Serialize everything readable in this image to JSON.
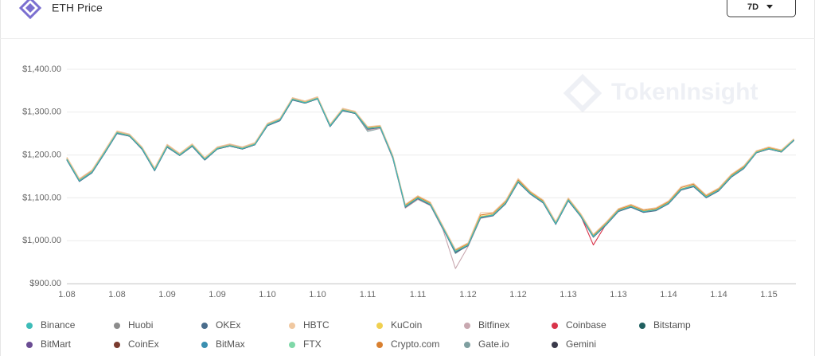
{
  "header": {
    "title": "ETH Price",
    "range_button": "7D",
    "watermark": "TokenInsight"
  },
  "chart_data": {
    "type": "line",
    "categories": [
      "1.08",
      null,
      null,
      null,
      "1.08",
      null,
      null,
      null,
      "1.09",
      null,
      null,
      null,
      "1.09",
      null,
      null,
      null,
      "1.10",
      null,
      null,
      null,
      "1.10",
      null,
      null,
      null,
      "1.11",
      null,
      null,
      null,
      "1.11",
      null,
      null,
      null,
      "1.12",
      null,
      null,
      null,
      "1.12",
      null,
      null,
      null,
      "1.13",
      null,
      null,
      null,
      "1.13",
      null,
      null,
      null,
      "1.14",
      null,
      null,
      null,
      "1.14",
      null,
      null,
      null,
      "1.15",
      null,
      null
    ],
    "ylim": [
      900,
      1400
    ],
    "yticks": [
      {
        "value": 900,
        "label": "$900.00"
      },
      {
        "value": 1000,
        "label": "$1,000.00"
      },
      {
        "value": 1100,
        "label": "$1,100.00"
      },
      {
        "value": 1200,
        "label": "$1,200.00"
      },
      {
        "value": 1300,
        "label": "$1,300.00"
      },
      {
        "value": 1400,
        "label": "$1,400.00"
      }
    ],
    "grid": true,
    "series": [
      {
        "name": "Binance",
        "color": "#3dbcb8",
        "values": [
          1190,
          1140,
          1160,
          1205,
          1252,
          1245,
          1215,
          1165,
          1220,
          1200,
          1222,
          1190,
          1215,
          1222,
          1215,
          1225,
          1270,
          1282,
          1330,
          1322,
          1332,
          1268,
          1305,
          1298,
          1262,
          1265,
          1195,
          1080,
          1100,
          1085,
          1030,
          975,
          990,
          1055,
          1060,
          1088,
          1138,
          1110,
          1090,
          1040,
          1095,
          1058,
          1010,
          1038,
          1070,
          1080,
          1068,
          1072,
          1088,
          1120,
          1128,
          1102,
          1118,
          1150,
          1170,
          1206,
          1215,
          1208,
          1235
        ]
      },
      {
        "name": "Huobi",
        "color": "#8c8c8c",
        "values": [
          1190,
          1140,
          1160,
          1205,
          1252,
          1245,
          1215,
          1165,
          1220,
          1200,
          1222,
          1190,
          1215,
          1222,
          1215,
          1225,
          1270,
          1282,
          1330,
          1322,
          1332,
          1268,
          1305,
          1298,
          1262,
          1265,
          1195,
          1080,
          1100,
          1085,
          1030,
          975,
          990,
          1055,
          1060,
          1088,
          1138,
          1110,
          1090,
          1040,
          1095,
          1058,
          1010,
          1038,
          1070,
          1080,
          1068,
          1072,
          1088,
          1120,
          1128,
          1102,
          1118,
          1150,
          1170,
          1206,
          1215,
          1208,
          1235
        ]
      },
      {
        "name": "OKEx",
        "color": "#4a6d8c",
        "values": [
          1188,
          1138,
          1158,
          1203,
          1250,
          1244,
          1213,
          1163,
          1218,
          1199,
          1220,
          1188,
          1214,
          1221,
          1214,
          1224,
          1268,
          1280,
          1328,
          1321,
          1331,
          1266,
          1303,
          1297,
          1260,
          1264,
          1193,
          1078,
          1098,
          1083,
          1028,
          972,
          988,
          1053,
          1058,
          1086,
          1136,
          1108,
          1088,
          1038,
          1093,
          1056,
          1008,
          1036,
          1068,
          1078,
          1066,
          1070,
          1086,
          1118,
          1126,
          1100,
          1116,
          1148,
          1168,
          1205,
          1214,
          1207,
          1234
        ]
      },
      {
        "name": "HBTC",
        "color": "#f0c8a0",
        "values": [
          1195,
          1145,
          1165,
          1210,
          1256,
          1249,
          1219,
          1170,
          1225,
          1204,
          1226,
          1194,
          1219,
          1226,
          1219,
          1229,
          1274,
          1286,
          1334,
          1326,
          1336,
          1272,
          1309,
          1302,
          1266,
          1269,
          1200,
          1085,
          1105,
          1090,
          1035,
          980,
          995,
          1065,
          1066,
          1094,
          1145,
          1115,
          1095,
          1045,
          1100,
          1063,
          1015,
          1043,
          1075,
          1085,
          1073,
          1077,
          1093,
          1126,
          1134,
          1107,
          1123,
          1155,
          1175,
          1210,
          1219,
          1212,
          1238
        ]
      },
      {
        "name": "KuCoin",
        "color": "#f0d050",
        "values": [
          1191,
          1141,
          1161,
          1206,
          1253,
          1246,
          1216,
          1166,
          1221,
          1201,
          1223,
          1191,
          1216,
          1223,
          1216,
          1226,
          1271,
          1283,
          1331,
          1323,
          1333,
          1269,
          1306,
          1299,
          1263,
          1266,
          1196,
          1081,
          1101,
          1086,
          1031,
          976,
          991,
          1057,
          1061,
          1089,
          1139,
          1111,
          1091,
          1041,
          1096,
          1059,
          1011,
          1039,
          1071,
          1081,
          1069,
          1073,
          1089,
          1121,
          1129,
          1103,
          1119,
          1151,
          1171,
          1207,
          1216,
          1209,
          1236
        ]
      },
      {
        "name": "Bitfinex",
        "color": "#c8a8b0",
        "values": [
          1192,
          1142,
          1162,
          1207,
          1254,
          1247,
          1217,
          1167,
          1222,
          1202,
          1224,
          1192,
          1217,
          1224,
          1217,
          1227,
          1272,
          1284,
          1332,
          1324,
          1334,
          1270,
          1307,
          1300,
          1258,
          1262,
          1192,
          1076,
          1096,
          1082,
          1026,
          935,
          986,
          1052,
          1058,
          1086,
          1137,
          1109,
          1089,
          1039,
          1094,
          1057,
          1009,
          1037,
          1069,
          1079,
          1067,
          1071,
          1087,
          1119,
          1127,
          1101,
          1117,
          1149,
          1169,
          1205,
          1214,
          1207,
          1234
        ]
      },
      {
        "name": "Coinbase",
        "color": "#d9344a",
        "values": [
          1190,
          1140,
          1160,
          1205,
          1252,
          1245,
          1215,
          1165,
          1220,
          1200,
          1222,
          1190,
          1215,
          1222,
          1215,
          1225,
          1270,
          1282,
          1330,
          1322,
          1332,
          1268,
          1305,
          1298,
          1262,
          1265,
          1195,
          1080,
          1100,
          1085,
          1030,
          975,
          990,
          1055,
          1060,
          1088,
          1138,
          1110,
          1090,
          1040,
          1095,
          1058,
          990,
          1038,
          1070,
          1080,
          1068,
          1072,
          1088,
          1120,
          1128,
          1102,
          1118,
          1150,
          1170,
          1206,
          1215,
          1208,
          1235
        ]
      },
      {
        "name": "Bitstamp",
        "color": "#1f5f5f",
        "values": [
          1189,
          1139,
          1159,
          1204,
          1251,
          1244,
          1214,
          1164,
          1219,
          1199,
          1221,
          1189,
          1214,
          1221,
          1214,
          1224,
          1269,
          1281,
          1329,
          1321,
          1331,
          1267,
          1304,
          1297,
          1261,
          1264,
          1194,
          1079,
          1099,
          1084,
          1029,
          974,
          989,
          1054,
          1059,
          1087,
          1137,
          1109,
          1089,
          1039,
          1094,
          1057,
          1009,
          1037,
          1069,
          1079,
          1067,
          1071,
          1087,
          1119,
          1127,
          1101,
          1117,
          1149,
          1169,
          1205,
          1214,
          1207,
          1234
        ]
      },
      {
        "name": "BitMart",
        "color": "#6a4c93",
        "values": [
          1190,
          1140,
          1160,
          1205,
          1252,
          1245,
          1215,
          1165,
          1220,
          1200,
          1222,
          1190,
          1215,
          1222,
          1215,
          1225,
          1270,
          1282,
          1330,
          1322,
          1332,
          1268,
          1305,
          1298,
          1262,
          1265,
          1195,
          1080,
          1100,
          1085,
          1030,
          975,
          990,
          1055,
          1060,
          1088,
          1138,
          1110,
          1090,
          1040,
          1095,
          1058,
          1010,
          1038,
          1070,
          1080,
          1068,
          1072,
          1088,
          1120,
          1128,
          1102,
          1118,
          1150,
          1170,
          1206,
          1215,
          1208,
          1235
        ]
      },
      {
        "name": "CoinEx",
        "color": "#7a3b2e",
        "values": [
          1191,
          1140,
          1161,
          1205,
          1253,
          1245,
          1216,
          1165,
          1221,
          1200,
          1223,
          1190,
          1216,
          1222,
          1216,
          1225,
          1271,
          1282,
          1331,
          1322,
          1333,
          1268,
          1306,
          1298,
          1263,
          1265,
          1196,
          1080,
          1101,
          1085,
          1031,
          975,
          991,
          1055,
          1061,
          1088,
          1139,
          1110,
          1091,
          1040,
          1096,
          1058,
          1011,
          1038,
          1071,
          1080,
          1069,
          1072,
          1089,
          1120,
          1129,
          1102,
          1119,
          1150,
          1171,
          1206,
          1216,
          1208,
          1236
        ]
      },
      {
        "name": "BitMax",
        "color": "#3a8fb0",
        "values": [
          1190,
          1140,
          1160,
          1205,
          1252,
          1245,
          1215,
          1165,
          1220,
          1200,
          1222,
          1190,
          1215,
          1222,
          1215,
          1225,
          1270,
          1282,
          1330,
          1322,
          1332,
          1268,
          1305,
          1298,
          1262,
          1265,
          1195,
          1080,
          1100,
          1085,
          1030,
          975,
          990,
          1055,
          1060,
          1088,
          1138,
          1110,
          1090,
          1040,
          1095,
          1058,
          1010,
          1038,
          1070,
          1080,
          1068,
          1072,
          1088,
          1120,
          1128,
          1102,
          1118,
          1150,
          1170,
          1206,
          1215,
          1208,
          1235
        ]
      },
      {
        "name": "FTX",
        "color": "#7fd8a8",
        "values": [
          1189,
          1140,
          1160,
          1205,
          1252,
          1245,
          1215,
          1165,
          1220,
          1200,
          1222,
          1190,
          1215,
          1222,
          1215,
          1225,
          1270,
          1282,
          1330,
          1322,
          1332,
          1268,
          1305,
          1298,
          1262,
          1265,
          1195,
          1080,
          1100,
          1085,
          1030,
          975,
          990,
          1055,
          1060,
          1088,
          1138,
          1110,
          1090,
          1040,
          1095,
          1058,
          1010,
          1038,
          1070,
          1080,
          1068,
          1072,
          1088,
          1120,
          1128,
          1102,
          1118,
          1150,
          1170,
          1206,
          1215,
          1208,
          1235
        ]
      },
      {
        "name": "Crypto.com",
        "color": "#d98030",
        "values": [
          1193,
          1143,
          1163,
          1208,
          1255,
          1248,
          1218,
          1168,
          1223,
          1203,
          1225,
          1193,
          1218,
          1225,
          1218,
          1228,
          1273,
          1285,
          1333,
          1325,
          1335,
          1271,
          1308,
          1301,
          1265,
          1268,
          1198,
          1083,
          1103,
          1088,
          1033,
          978,
          993,
          1060,
          1064,
          1092,
          1142,
          1113,
          1093,
          1043,
          1098,
          1061,
          1013,
          1041,
          1073,
          1083,
          1071,
          1075,
          1091,
          1124,
          1132,
          1105,
          1121,
          1153,
          1173,
          1208,
          1217,
          1210,
          1237
        ]
      },
      {
        "name": "Gate.io",
        "color": "#7f9fa0",
        "values": [
          1190,
          1140,
          1160,
          1205,
          1252,
          1245,
          1215,
          1165,
          1220,
          1200,
          1222,
          1190,
          1215,
          1222,
          1215,
          1225,
          1270,
          1282,
          1330,
          1322,
          1332,
          1268,
          1305,
          1298,
          1255,
          1262,
          1195,
          1080,
          1100,
          1085,
          1030,
          970,
          990,
          1055,
          1060,
          1088,
          1138,
          1110,
          1090,
          1040,
          1095,
          1058,
          1010,
          1038,
          1070,
          1080,
          1068,
          1072,
          1088,
          1120,
          1128,
          1102,
          1118,
          1150,
          1170,
          1206,
          1215,
          1208,
          1235
        ]
      },
      {
        "name": "Gemini",
        "color": "#3a3a4a",
        "values": [
          1189,
          1139,
          1159,
          1204,
          1251,
          1244,
          1214,
          1164,
          1219,
          1199,
          1221,
          1189,
          1214,
          1221,
          1214,
          1224,
          1269,
          1281,
          1329,
          1321,
          1331,
          1267,
          1304,
          1297,
          1261,
          1264,
          1194,
          1079,
          1099,
          1084,
          1029,
          973,
          989,
          1054,
          1059,
          1087,
          1137,
          1109,
          1089,
          1039,
          1094,
          1057,
          1009,
          1037,
          1069,
          1079,
          1067,
          1071,
          1087,
          1119,
          1127,
          1101,
          1117,
          1149,
          1169,
          1205,
          1214,
          1207,
          1234
        ]
      }
    ]
  }
}
